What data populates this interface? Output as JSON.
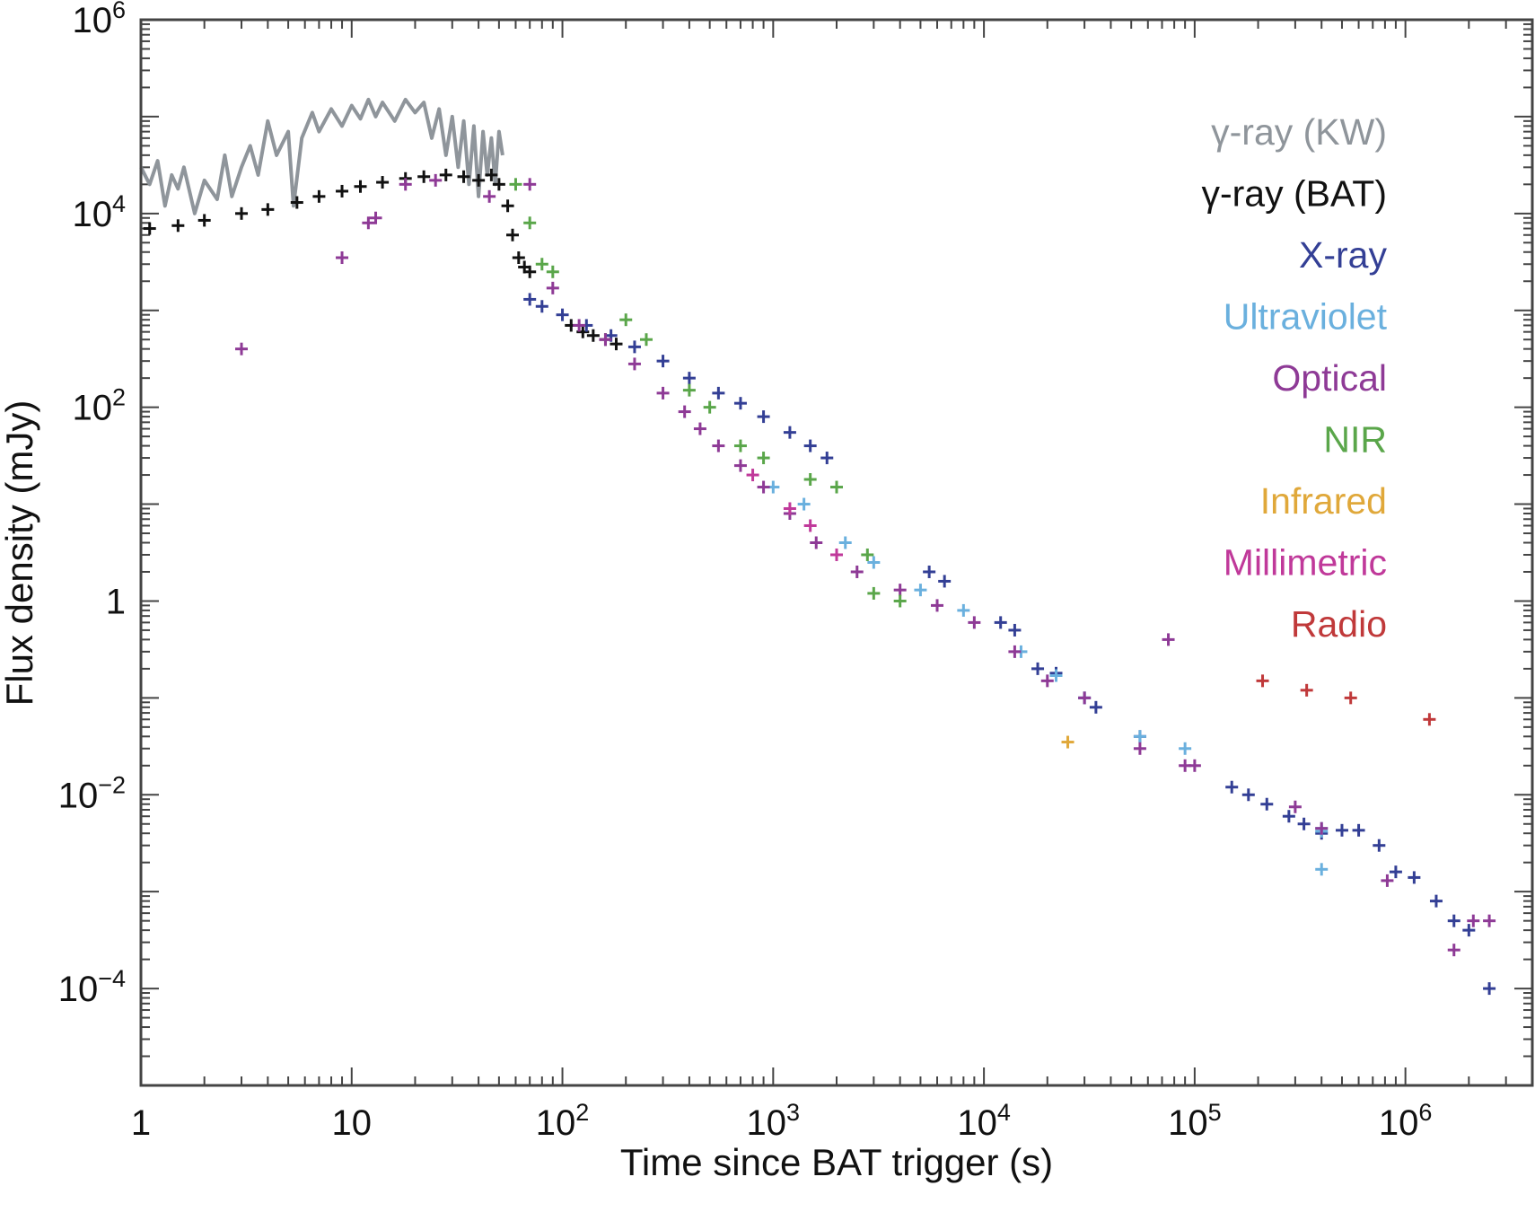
{
  "chart_data": {
    "type": "scatter",
    "title": "",
    "xlabel": "Time since BAT trigger (s)",
    "ylabel": "Flux density (mJy)",
    "xscale": "log",
    "yscale": "log",
    "xlim": [
      1,
      4000000
    ],
    "ylim": [
      1e-05,
      1000000
    ],
    "legend_position": "top-right",
    "x_ticks": [
      {
        "value": 1,
        "base": "1",
        "exp": ""
      },
      {
        "value": 10,
        "base": "10",
        "exp": ""
      },
      {
        "value": 100,
        "base": "10",
        "exp": "2"
      },
      {
        "value": 1000,
        "base": "10",
        "exp": "3"
      },
      {
        "value": 10000,
        "base": "10",
        "exp": "4"
      },
      {
        "value": 100000,
        "base": "10",
        "exp": "5"
      },
      {
        "value": 1000000,
        "base": "10",
        "exp": "6"
      }
    ],
    "y_ticks": [
      {
        "value": 1000000,
        "base": "10",
        "exp": "6"
      },
      {
        "value": 10000,
        "base": "10",
        "exp": "4"
      },
      {
        "value": 100,
        "base": "10",
        "exp": "2"
      },
      {
        "value": 1,
        "base": "1",
        "exp": ""
      },
      {
        "value": 0.01,
        "base": "10",
        "exp": "−2"
      },
      {
        "value": 0.0001,
        "base": "10",
        "exp": "−4"
      }
    ],
    "series": [
      {
        "name": "γ-ray (KW)",
        "color": "#8f959b",
        "style": "line",
        "points": [
          [
            1.0,
            30000
          ],
          [
            1.1,
            20000
          ],
          [
            1.2,
            35000
          ],
          [
            1.3,
            12000
          ],
          [
            1.4,
            25000
          ],
          [
            1.5,
            18000
          ],
          [
            1.6,
            30000
          ],
          [
            1.8,
            10000
          ],
          [
            2.0,
            22000
          ],
          [
            2.3,
            14000
          ],
          [
            2.5,
            40000
          ],
          [
            2.7,
            15000
          ],
          [
            3.0,
            30000
          ],
          [
            3.3,
            50000
          ],
          [
            3.6,
            25000
          ],
          [
            4.0,
            90000
          ],
          [
            4.4,
            40000
          ],
          [
            5.0,
            70000
          ],
          [
            5.3,
            12000
          ],
          [
            5.8,
            60000
          ],
          [
            6.5,
            110000
          ],
          [
            7.0,
            70000
          ],
          [
            8.0,
            120000
          ],
          [
            9.0,
            80000
          ],
          [
            10,
            130000
          ],
          [
            11,
            95000
          ],
          [
            12,
            150000
          ],
          [
            13,
            100000
          ],
          [
            14,
            140000
          ],
          [
            16,
            90000
          ],
          [
            18,
            150000
          ],
          [
            20,
            110000
          ],
          [
            22,
            140000
          ],
          [
            24,
            60000
          ],
          [
            26,
            120000
          ],
          [
            28,
            40000
          ],
          [
            30,
            100000
          ],
          [
            32,
            30000
          ],
          [
            34,
            90000
          ],
          [
            36,
            20000
          ],
          [
            38,
            80000
          ],
          [
            40,
            15000
          ],
          [
            42,
            70000
          ],
          [
            44,
            25000
          ],
          [
            46,
            60000
          ],
          [
            48,
            20000
          ],
          [
            50,
            70000
          ],
          [
            52,
            40000
          ]
        ]
      },
      {
        "name": "γ-ray (BAT)",
        "color": "#111111",
        "style": "points",
        "points": [
          [
            1.1,
            7000
          ],
          [
            1.5,
            7500
          ],
          [
            2.0,
            8500
          ],
          [
            3.0,
            10000
          ],
          [
            4.0,
            11000
          ],
          [
            5.5,
            13000
          ],
          [
            7.0,
            15000
          ],
          [
            9.0,
            17000
          ],
          [
            11,
            19000
          ],
          [
            14,
            21000
          ],
          [
            18,
            23000
          ],
          [
            22,
            24000
          ],
          [
            28,
            25000
          ],
          [
            34,
            24000
          ],
          [
            40,
            22000
          ],
          [
            46,
            25000
          ],
          [
            50,
            20000
          ],
          [
            55,
            12000
          ],
          [
            58,
            6000
          ],
          [
            62,
            3500
          ],
          [
            66,
            2800
          ],
          [
            70,
            2500
          ],
          [
            110,
            700
          ],
          [
            125,
            600
          ],
          [
            140,
            550
          ],
          [
            160,
            500
          ],
          [
            180,
            450
          ]
        ]
      },
      {
        "name": "X-ray",
        "color": "#333f95",
        "style": "points",
        "points": [
          [
            70,
            1300
          ],
          [
            80,
            1100
          ],
          [
            100,
            900
          ],
          [
            130,
            700
          ],
          [
            170,
            550
          ],
          [
            220,
            420
          ],
          [
            300,
            300
          ],
          [
            400,
            200
          ],
          [
            550,
            140
          ],
          [
            700,
            110
          ],
          [
            900,
            80
          ],
          [
            1200,
            55
          ],
          [
            1500,
            40
          ],
          [
            1800,
            30
          ],
          [
            5500,
            2.0
          ],
          [
            6500,
            1.6
          ],
          [
            12000,
            0.6
          ],
          [
            14000,
            0.5
          ],
          [
            18000,
            0.2
          ],
          [
            22000,
            0.18
          ],
          [
            30000,
            0.1
          ],
          [
            34000,
            0.08
          ],
          [
            55000,
            0.04
          ],
          [
            150000,
            0.012
          ],
          [
            180000,
            0.01
          ],
          [
            220000,
            0.008
          ],
          [
            280000,
            0.006
          ],
          [
            330000,
            0.005
          ],
          [
            400000,
            0.004
          ],
          [
            500000,
            0.0043
          ],
          [
            600000,
            0.0043
          ],
          [
            750000,
            0.003
          ],
          [
            900000,
            0.0016
          ],
          [
            1100000,
            0.0014
          ],
          [
            1400000,
            0.0008
          ],
          [
            1700000,
            0.0005
          ],
          [
            2000000,
            0.0004
          ],
          [
            2500000,
            0.0001
          ]
        ]
      },
      {
        "name": "Ultraviolet",
        "color": "#6ab0de",
        "style": "points",
        "points": [
          [
            1000,
            15
          ],
          [
            1400,
            10
          ],
          [
            2200,
            4
          ],
          [
            3000,
            2.5
          ],
          [
            5000,
            1.3
          ],
          [
            8000,
            0.8
          ],
          [
            15000,
            0.3
          ],
          [
            22000,
            0.17
          ],
          [
            30000,
            0.1
          ],
          [
            55000,
            0.04
          ],
          [
            90000,
            0.03
          ],
          [
            400000,
            0.0045
          ],
          [
            400000,
            0.0042
          ],
          [
            400000,
            0.0017
          ]
        ]
      },
      {
        "name": "Optical",
        "color": "#8e3a96",
        "style": "points",
        "points": [
          [
            3.0,
            400
          ],
          [
            9.0,
            3500
          ],
          [
            12,
            8000
          ],
          [
            13,
            9000
          ],
          [
            18,
            20000
          ],
          [
            25,
            22000
          ],
          [
            45,
            15000
          ],
          [
            70,
            20000
          ],
          [
            90,
            1700
          ],
          [
            120,
            700
          ],
          [
            160,
            500
          ],
          [
            220,
            280
          ],
          [
            300,
            140
          ],
          [
            380,
            90
          ],
          [
            450,
            60
          ],
          [
            550,
            40
          ],
          [
            700,
            25
          ],
          [
            900,
            15
          ],
          [
            1200,
            8
          ],
          [
            1600,
            4
          ],
          [
            2500,
            2
          ],
          [
            4000,
            1.3
          ],
          [
            6000,
            0.9
          ],
          [
            9000,
            0.6
          ],
          [
            14000,
            0.3
          ],
          [
            20000,
            0.15
          ],
          [
            30000,
            0.1
          ],
          [
            55000,
            0.03
          ],
          [
            75000,
            0.4
          ],
          [
            90000,
            0.02
          ],
          [
            100000,
            0.02
          ],
          [
            300000,
            0.0075
          ],
          [
            400000,
            0.0045
          ],
          [
            820000,
            0.0013
          ],
          [
            1700000,
            0.00025
          ],
          [
            2100000,
            0.0005
          ],
          [
            2500000,
            0.0005
          ]
        ]
      },
      {
        "name": "NIR",
        "color": "#5aa64a",
        "style": "points",
        "points": [
          [
            60,
            20000
          ],
          [
            70,
            8000
          ],
          [
            80,
            3000
          ],
          [
            90,
            2500
          ],
          [
            200,
            800
          ],
          [
            250,
            500
          ],
          [
            400,
            150
          ],
          [
            500,
            100
          ],
          [
            700,
            40
          ],
          [
            900,
            30
          ],
          [
            1500,
            18
          ],
          [
            2000,
            15
          ],
          [
            2800,
            3
          ],
          [
            3000,
            1.2
          ],
          [
            4000,
            1.0
          ]
        ]
      },
      {
        "name": "Infrared",
        "color": "#e0a83a",
        "style": "points",
        "points": [
          [
            25000,
            0.035
          ]
        ]
      },
      {
        "name": "Millimetric",
        "color": "#c0399a",
        "style": "points",
        "points": [
          [
            800,
            20
          ],
          [
            1200,
            9
          ],
          [
            1500,
            6
          ],
          [
            2000,
            3
          ]
        ]
      },
      {
        "name": "Radio",
        "color": "#c0393a",
        "style": "points",
        "points": [
          [
            210000,
            0.15
          ],
          [
            340000,
            0.12
          ],
          [
            550000,
            0.1
          ],
          [
            1300000,
            0.06
          ]
        ]
      }
    ],
    "legend": [
      {
        "label": "γ-ray (KW)",
        "color": "#8f959b"
      },
      {
        "label": "γ-ray (BAT)",
        "color": "#111111"
      },
      {
        "label": "X-ray",
        "color": "#333f95"
      },
      {
        "label": "Ultraviolet",
        "color": "#6ab0de"
      },
      {
        "label": "Optical",
        "color": "#8e3a96"
      },
      {
        "label": "NIR",
        "color": "#5aa64a"
      },
      {
        "label": "Infrared",
        "color": "#e0a83a"
      },
      {
        "label": "Millimetric",
        "color": "#c0399a"
      },
      {
        "label": "Radio",
        "color": "#c0393a"
      }
    ]
  }
}
